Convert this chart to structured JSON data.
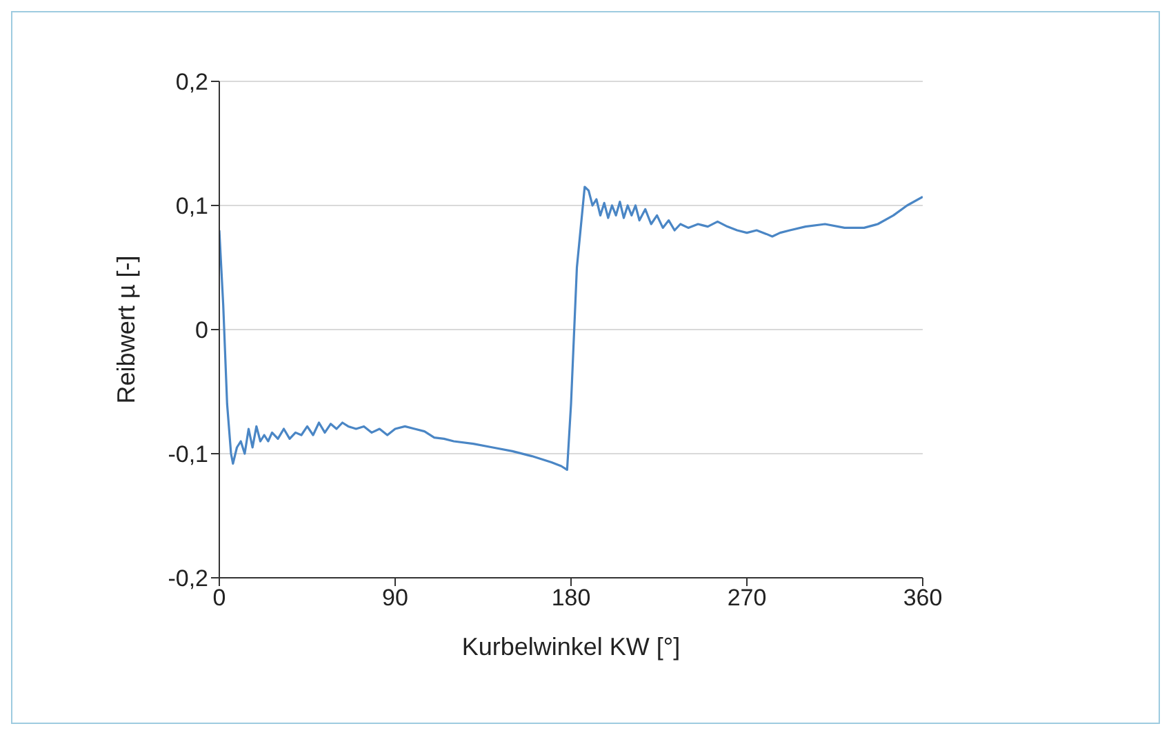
{
  "chart_data": {
    "type": "line",
    "xlabel": "Kurbelwinkel KW [°]",
    "ylabel": "Reibwert µ [-]",
    "xlim": [
      0,
      360
    ],
    "xticks": [
      0,
      90,
      180,
      270,
      360
    ],
    "ylim": [
      -0.2,
      0.2
    ],
    "yticks": [
      {
        "value": -0.2,
        "label": "-0,2"
      },
      {
        "value": -0.1,
        "label": "-0,1"
      },
      {
        "value": 0,
        "label": "0"
      },
      {
        "value": 0.1,
        "label": "0,1"
      },
      {
        "value": 0.2,
        "label": "0,2"
      }
    ],
    "grid": "y",
    "legend": false,
    "marker": "none",
    "line_style": "solid",
    "x": [
      0,
      2,
      4,
      6,
      7,
      9,
      11,
      13,
      15,
      17,
      19,
      21,
      23,
      25,
      27,
      30,
      33,
      36,
      39,
      42,
      45,
      48,
      51,
      54,
      57,
      60,
      63,
      66,
      70,
      74,
      78,
      82,
      86,
      90,
      95,
      100,
      105,
      110,
      115,
      120,
      130,
      140,
      150,
      160,
      170,
      175,
      178,
      180,
      183,
      187,
      189,
      191,
      193,
      195,
      197,
      199,
      201,
      203,
      205,
      207,
      209,
      211,
      213,
      215,
      218,
      221,
      224,
      227,
      230,
      233,
      236,
      240,
      245,
      250,
      255,
      260,
      265,
      270,
      275,
      280,
      283,
      287,
      292,
      300,
      310,
      320,
      330,
      337,
      345,
      352,
      360
    ],
    "series": [
      {
        "color": "#4a86c5",
        "values": [
          0.08,
          0.02,
          -0.06,
          -0.1,
          -0.108,
          -0.095,
          -0.09,
          -0.1,
          -0.08,
          -0.095,
          -0.078,
          -0.09,
          -0.085,
          -0.09,
          -0.083,
          -0.088,
          -0.08,
          -0.088,
          -0.083,
          -0.085,
          -0.078,
          -0.085,
          -0.075,
          -0.083,
          -0.076,
          -0.08,
          -0.075,
          -0.078,
          -0.08,
          -0.078,
          -0.083,
          -0.08,
          -0.085,
          -0.08,
          -0.078,
          -0.08,
          -0.082,
          -0.087,
          -0.088,
          -0.09,
          -0.092,
          -0.095,
          -0.098,
          -0.102,
          -0.107,
          -0.11,
          -0.113,
          -0.06,
          0.05,
          0.115,
          0.112,
          0.1,
          0.105,
          0.092,
          0.102,
          0.09,
          0.1,
          0.092,
          0.103,
          0.09,
          0.1,
          0.092,
          0.1,
          0.088,
          0.097,
          0.085,
          0.092,
          0.082,
          0.088,
          0.08,
          0.085,
          0.082,
          0.085,
          0.083,
          0.087,
          0.083,
          0.08,
          0.078,
          0.08,
          0.077,
          0.075,
          0.078,
          0.08,
          0.083,
          0.085,
          0.082,
          0.082,
          0.085,
          0.092,
          0.1,
          0.107
        ]
      }
    ]
  }
}
